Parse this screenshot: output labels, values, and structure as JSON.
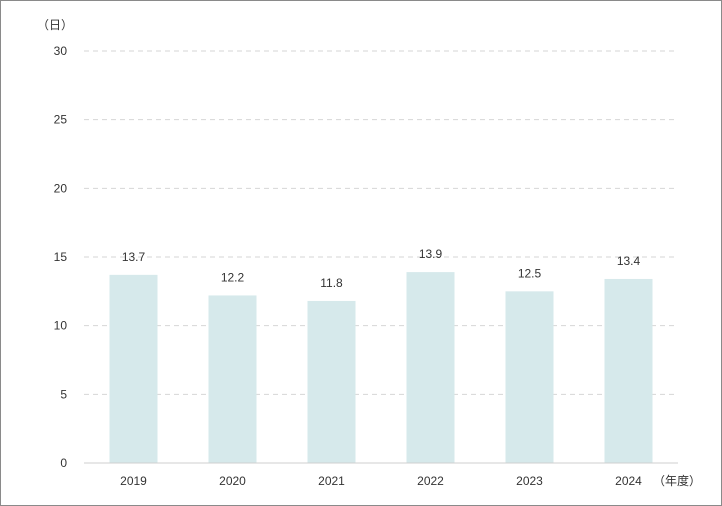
{
  "chart_data": {
    "type": "bar",
    "categories": [
      "2019",
      "2020",
      "2021",
      "2022",
      "2023",
      "2024"
    ],
    "values": [
      13.7,
      12.2,
      11.8,
      13.9,
      12.5,
      13.4
    ],
    "data_labels": [
      "13.7",
      "12.2",
      "11.8",
      "13.9",
      "12.5",
      "13.4"
    ],
    "title": "",
    "ylabel": "（日）",
    "xlabel": "（年度）",
    "ylim": [
      0,
      30
    ],
    "yticks": [
      0,
      5,
      10,
      15,
      20,
      25,
      30
    ],
    "ytick_labels": [
      "0",
      "5",
      "10",
      "15",
      "20",
      "25",
      "30"
    ],
    "grid": true,
    "legend": "none",
    "bar_color": "#d6e9eb"
  }
}
